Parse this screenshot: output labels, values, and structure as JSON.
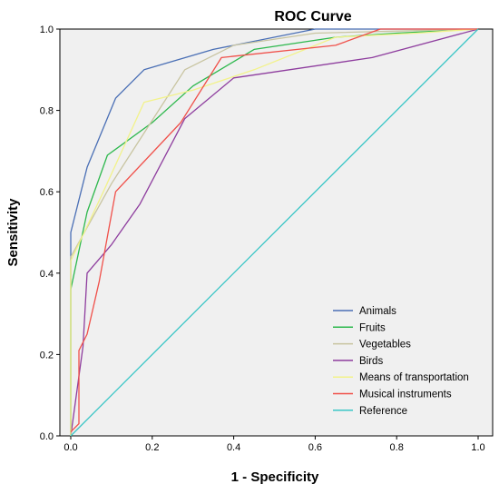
{
  "chart_data": {
    "type": "line",
    "title": "ROC Curve",
    "xlabel": "1 - Specificity",
    "ylabel": "Sensitivity",
    "xlim": [
      0,
      1
    ],
    "ylim": [
      0,
      1
    ],
    "x_ticks": [
      "0.0",
      "0.2",
      "0.4",
      "0.6",
      "0.8",
      "1.0"
    ],
    "y_ticks": [
      "0.0",
      "0.2",
      "0.4",
      "0.6",
      "0.8",
      "1.0"
    ],
    "grid": false,
    "legend_position": "bottom-right",
    "background_color": "#f0f0f0",
    "series": [
      {
        "name": "Animals",
        "color": "#4a6fb5",
        "points": [
          [
            0,
            0
          ],
          [
            0,
            0.5
          ],
          [
            0.04,
            0.66
          ],
          [
            0.11,
            0.83
          ],
          [
            0.18,
            0.9
          ],
          [
            0.35,
            0.95
          ],
          [
            0.6,
            1.0
          ],
          [
            1.0,
            1.0
          ]
        ]
      },
      {
        "name": "Fruits",
        "color": "#2db84d",
        "points": [
          [
            0,
            0
          ],
          [
            0,
            0.36
          ],
          [
            0.04,
            0.55
          ],
          [
            0.09,
            0.69
          ],
          [
            0.2,
            0.77
          ],
          [
            0.3,
            0.86
          ],
          [
            0.45,
            0.95
          ],
          [
            0.65,
            0.98
          ],
          [
            0.8,
            0.99
          ],
          [
            1.0,
            1.0
          ]
        ]
      },
      {
        "name": "Vegetables",
        "color": "#c8c4a0",
        "points": [
          [
            0,
            0
          ],
          [
            0,
            0.44
          ],
          [
            0.1,
            0.62
          ],
          [
            0.28,
            0.9
          ],
          [
            0.4,
            0.96
          ],
          [
            0.6,
            0.99
          ],
          [
            1.0,
            1.0
          ]
        ]
      },
      {
        "name": "Birds",
        "color": "#8e3d9e",
        "points": [
          [
            0,
            0
          ],
          [
            0.03,
            0.22
          ],
          [
            0.04,
            0.4
          ],
          [
            0.1,
            0.47
          ],
          [
            0.17,
            0.57
          ],
          [
            0.28,
            0.78
          ],
          [
            0.4,
            0.88
          ],
          [
            0.74,
            0.93
          ],
          [
            1.0,
            1.0
          ]
        ]
      },
      {
        "name": "Means of transportation",
        "color": "#f2f28a",
        "points": [
          [
            0,
            0
          ],
          [
            0,
            0.43
          ],
          [
            0.08,
            0.6
          ],
          [
            0.18,
            0.82
          ],
          [
            0.3,
            0.85
          ],
          [
            0.45,
            0.9
          ],
          [
            0.65,
            0.98
          ],
          [
            0.85,
            0.99
          ],
          [
            1.0,
            1.0
          ]
        ]
      },
      {
        "name": "Musical instruments",
        "color": "#f0504a",
        "points": [
          [
            0,
            0.01
          ],
          [
            0.02,
            0.03
          ],
          [
            0.02,
            0.21
          ],
          [
            0.04,
            0.25
          ],
          [
            0.07,
            0.38
          ],
          [
            0.11,
            0.6
          ],
          [
            0.27,
            0.77
          ],
          [
            0.37,
            0.93
          ],
          [
            0.65,
            0.96
          ],
          [
            0.76,
            1.0
          ],
          [
            1.0,
            1.0
          ]
        ]
      },
      {
        "name": "Reference",
        "color": "#3ac6c6",
        "points": [
          [
            0,
            0
          ],
          [
            1.0,
            1.0
          ]
        ]
      }
    ]
  }
}
